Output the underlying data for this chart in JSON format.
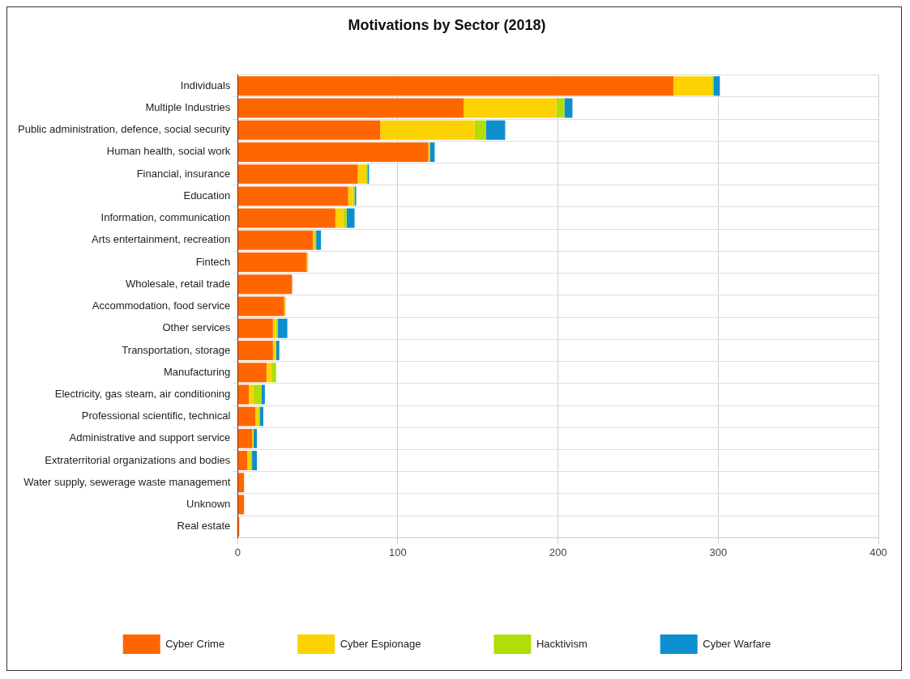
{
  "chart_data": {
    "type": "bar",
    "orientation": "horizontal",
    "stacked": true,
    "title": "Motivations by Sector (2018)",
    "categories": [
      "Individuals",
      "Multiple Industries",
      "Public administration, defence, social security",
      "Human health, social work",
      "Financial, insurance",
      "Education",
      "Information, communication",
      "Arts entertainment, recreation",
      "Fintech",
      "Wholesale, retail trade",
      "Accommodation, food service",
      "Other services",
      "Transportation, storage",
      "Manufacturing",
      "Electricity, gas steam, air conditioning",
      "Professional scientific, technical",
      "Administrative and support service",
      "Extraterritorial organizations and bodies",
      "Water supply, sewerage waste management",
      "Unknown",
      "Real estate"
    ],
    "series": [
      {
        "name": "Cyber Crime",
        "color": "#ff6600",
        "values": [
          272,
          141,
          89,
          119,
          75,
          69,
          61,
          47,
          43,
          34,
          29,
          22,
          22,
          18,
          7,
          11,
          9,
          6,
          4,
          4,
          1
        ]
      },
      {
        "name": "Cyber Espionage",
        "color": "#fcd202",
        "values": [
          24,
          58,
          59,
          1,
          5,
          3,
          5,
          1,
          1,
          0,
          1,
          2,
          2,
          3,
          3,
          2,
          1,
          2,
          0,
          0,
          0
        ]
      },
      {
        "name": "Hacktivism",
        "color": "#b0de09",
        "values": [
          1,
          5,
          7,
          0,
          1,
          1,
          2,
          1,
          0,
          0,
          0,
          1,
          0,
          3,
          5,
          1,
          0,
          1,
          0,
          0,
          0
        ]
      },
      {
        "name": "Cyber Warfare",
        "color": "#0d8ecf",
        "values": [
          4,
          5,
          12,
          3,
          1,
          1,
          5,
          3,
          0,
          0,
          0,
          6,
          2,
          0,
          2,
          2,
          2,
          3,
          0,
          0,
          0
        ]
      }
    ],
    "xlim": [
      0,
      400
    ],
    "xticks": [
      0,
      100,
      200,
      300,
      400
    ],
    "grid": true,
    "legend": "bottom"
  }
}
